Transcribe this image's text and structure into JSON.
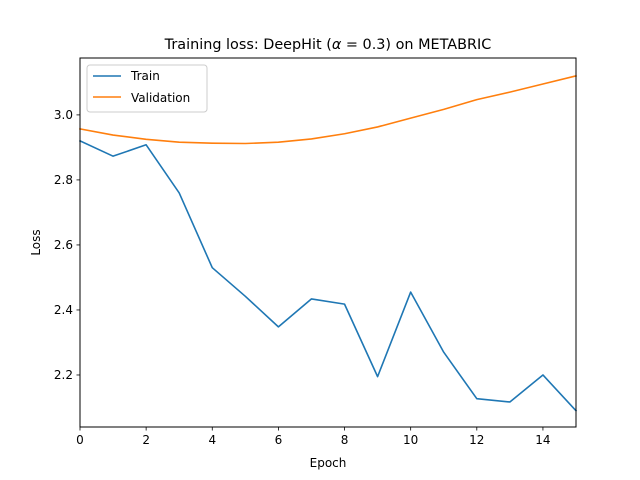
{
  "chart_data": {
    "type": "line",
    "title": "Training loss: DeepHit (α = 0.3) on METABRIC",
    "title_prefix": "Training loss: DeepHit (",
    "title_alpha": "α",
    "title_eq": " = 0.3) on METABRIC",
    "xlabel": "Epoch",
    "ylabel": "Loss",
    "xlim": [
      0,
      15
    ],
    "ylim": [
      2.04,
      3.175
    ],
    "xticks": [
      0,
      2,
      4,
      6,
      8,
      10,
      12,
      14
    ],
    "yticks": [
      2.2,
      2.4,
      2.6,
      2.8,
      3.0
    ],
    "x": [
      0,
      1,
      2,
      3,
      4,
      5,
      6,
      7,
      8,
      9,
      10,
      11,
      12,
      13,
      14,
      15
    ],
    "series": [
      {
        "name": "Train",
        "color": "#1f77b4",
        "values": [
          2.92,
          2.873,
          2.908,
          2.76,
          2.53,
          2.442,
          2.348,
          2.434,
          2.418,
          2.195,
          2.455,
          2.27,
          2.127,
          2.117,
          2.2,
          2.09
        ]
      },
      {
        "name": "Validation",
        "color": "#ff7f0e",
        "values": [
          2.957,
          2.938,
          2.925,
          2.916,
          2.913,
          2.912,
          2.916,
          2.926,
          2.942,
          2.963,
          2.99,
          3.017,
          3.047,
          3.07,
          3.095,
          3.12
        ]
      }
    ],
    "legend_position": "top-left",
    "grid": false
  }
}
